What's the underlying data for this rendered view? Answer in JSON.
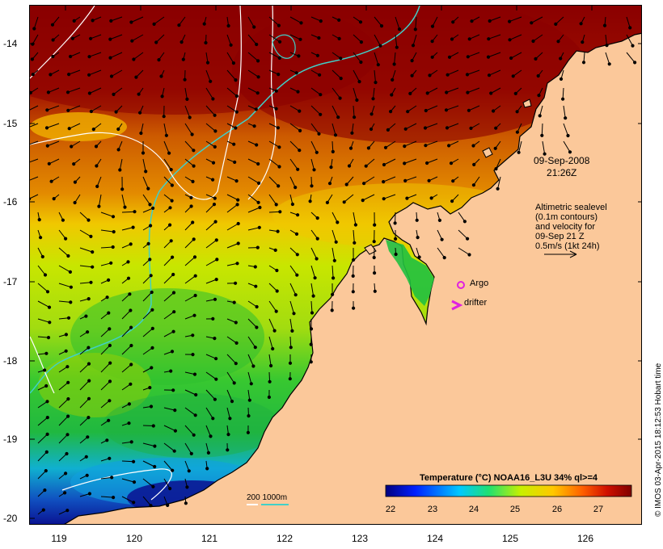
{
  "map": {
    "timestamp_line1": "09-Sep-2008",
    "timestamp_line2": "21:26Z",
    "legend_note": [
      "Altimetric sealevel",
      "(0.1m contours)",
      "and velocity for",
      "09-Sep 21 Z",
      "0.5m/s (1kt 24h)"
    ],
    "argo_label": "Argo",
    "drifter_label": "drifter",
    "scale_label": "200  1000m",
    "colorbar_title": "Temperature (°C) NOAA16_L3U 34% ql>=4",
    "colorbar_ticks": [
      "22",
      "23",
      "24",
      "25",
      "26",
      "27"
    ],
    "copyright": "© IMOS 03-Apr-2015 18:12:53 Hobart time",
    "latitudes": [
      "-14",
      "-15",
      "-16",
      "-17",
      "-18",
      "-19",
      "-20"
    ],
    "longitudes": [
      "119",
      "120",
      "121",
      "122",
      "123",
      "124",
      "125",
      "126"
    ],
    "colors": {
      "land": "#fbc89a",
      "argo_marker": "#e020e0",
      "drifter_marker": "#e020e0",
      "contour_200m": "#ffffff",
      "contour_1000m": "#40d0c8",
      "sst_cold": "#0a1090",
      "sst_warm": "#8a0000"
    }
  }
}
